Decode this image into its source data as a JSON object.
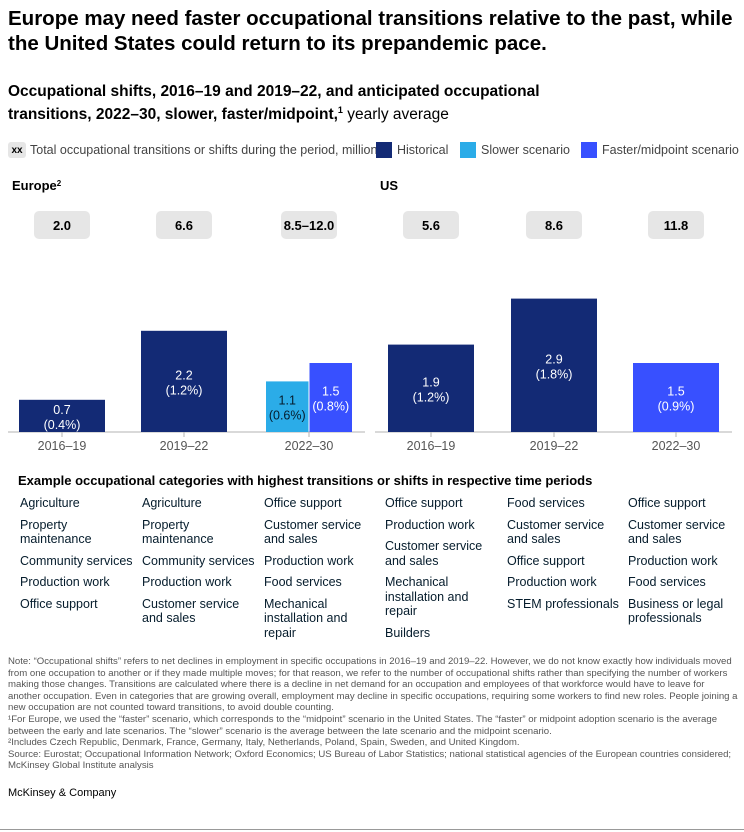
{
  "title": "Europe may need faster occupational transitions relative to the past, while the United States could return to its prepandemic pace.",
  "subtitle_bold": "Occupational shifts, 2016–19 and 2019–22, and anticipated occupational transitions, 2022–30, slower, faster/midpoint,",
  "subtitle_sup": "1",
  "subtitle_light": " yearly average",
  "legend": {
    "xx_label": "xx",
    "total_text": "Total occupational transitions or shifts during the period, million",
    "historical": "Historical",
    "slower": "Slower scenario",
    "faster": "Faster/midpoint scenario"
  },
  "colors": {
    "historical": "#132a75",
    "slower": "#2bace8",
    "faster": "#3850ff",
    "total_box": "#e6e6e6",
    "axis": "#b3b3b3"
  },
  "chart_data": {
    "type": "bar",
    "unit": "million, yearly average (share of employment)",
    "panels": [
      {
        "name": "Europe",
        "name_sup": "2",
        "categories": [
          "2016–19",
          "2019–22",
          "2022–30"
        ],
        "totals": [
          "2.0",
          "6.6",
          "8.5–12.0"
        ],
        "bars": [
          {
            "category": "2016–19",
            "series": "historical",
            "value": 0.7,
            "label": "0.7",
            "sublabel": "(0.4%)"
          },
          {
            "category": "2019–22",
            "series": "historical",
            "value": 2.2,
            "label": "2.2",
            "sublabel": "(1.2%)"
          },
          {
            "category": "2022–30",
            "series": "slower",
            "value": 1.1,
            "label": "1.1",
            "sublabel": "(0.6%)"
          },
          {
            "category": "2022–30",
            "series": "faster",
            "value": 1.5,
            "label": "1.5",
            "sublabel": "(0.8%)"
          }
        ]
      },
      {
        "name": "US",
        "name_sup": "",
        "categories": [
          "2016–19",
          "2019–22",
          "2022–30"
        ],
        "totals": [
          "5.6",
          "8.6",
          "11.8"
        ],
        "bars": [
          {
            "category": "2016–19",
            "series": "historical",
            "value": 1.9,
            "label": "1.9",
            "sublabel": "(1.2%)"
          },
          {
            "category": "2019–22",
            "series": "historical",
            "value": 2.9,
            "label": "2.9",
            "sublabel": "(1.8%)"
          },
          {
            "category": "2022–30",
            "series": "faster",
            "value": 1.5,
            "label": "1.5",
            "sublabel": "(0.9%)"
          }
        ]
      }
    ],
    "ylim": [
      0,
      3.2
    ]
  },
  "categories_section": {
    "title": "Example occupational categories with highest transitions or shifts in respective time periods",
    "columns": [
      [
        "Agriculture",
        "Property maintenance",
        "Community services",
        "Production work",
        "Office support"
      ],
      [
        "Agriculture",
        "Property maintenance",
        "Community services",
        "Production work",
        "Customer service and sales"
      ],
      [
        "Office support",
        "Customer service and sales",
        "Production work",
        "Food services",
        "Mechanical installation and repair"
      ],
      [
        "Office support",
        "Production work",
        "Customer service and sales",
        "Mechanical installation and repair",
        "Builders"
      ],
      [
        "Food services",
        "Customer service and sales",
        "Office support",
        "Production work",
        "STEM professionals"
      ],
      [
        "Office support",
        "Customer service and sales",
        "Production work",
        "Food services",
        "Business or legal professionals"
      ]
    ]
  },
  "notes": [
    "Note: “Occupational shifts” refers to net declines in employment in specific occupations in 2016–19 and 2019–22. However, we do not know exactly how individuals moved from one occupation to another or if they made multiple moves; for that reason, we refer to the number of occupational shifts rather than specifying the number of workers making those changes. Transitions are calculated where there is a decline in net demand for an occupation and employees of that workforce would have to leave for another occupation. Even in categories that are growing overall, employment may decline in specific occupations, requiring some workers to find new roles. People joining a new occupation are not counted toward transitions, to avoid double counting.",
    "¹For Europe, we used the “faster” scenario, which corresponds to the “midpoint” scenario in the United States. The “faster” or midpoint adoption scenario is the average between the early and late scenarios. The “slower” scenario is the average between the late scenario and the midpoint scenario.",
    "²Includes Czech Republic, Denmark, France, Germany, Italy, Netherlands, Poland, Spain, Sweden, and United Kingdom.",
    "Source: Eurostat; Occupational Information Network; Oxford Economics; US Bureau of Labor Statistics; national statistical agencies of the European countries considered; McKinsey Global Institute analysis"
  ],
  "brand": "McKinsey & Company"
}
